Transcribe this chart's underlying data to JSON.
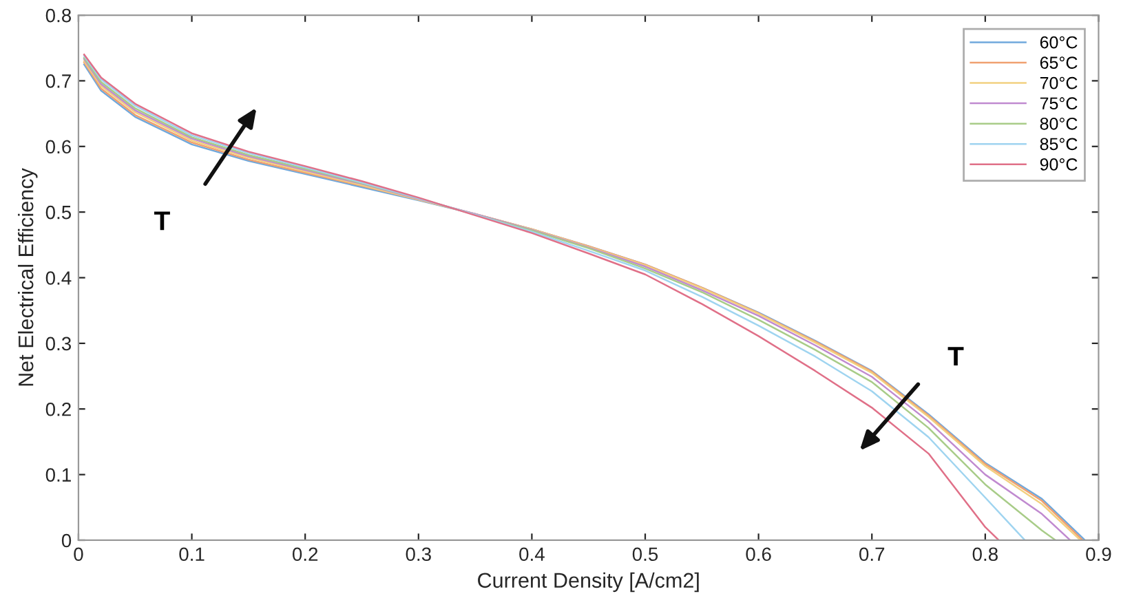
{
  "chart_data": {
    "type": "line",
    "xlabel": "Current Density [A/cm2]",
    "ylabel": "Net Electrical Efficiency",
    "xlim": [
      0,
      0.9
    ],
    "xticks": [
      0,
      0.1,
      0.2,
      0.3,
      0.4,
      0.5,
      0.6,
      0.7,
      0.8,
      0.9
    ],
    "ylim": [
      0,
      0.8
    ],
    "yticks": [
      0,
      0.1,
      0.2,
      0.3,
      0.4,
      0.5,
      0.6,
      0.7,
      0.8
    ],
    "grid": false,
    "legend": "top right",
    "annotations": [
      "T",
      "T"
    ],
    "series": [
      {
        "name": "60°C",
        "color": "#6fa8dc",
        "x": [
          0.005,
          0.02,
          0.05,
          0.1,
          0.15,
          0.2,
          0.25,
          0.3,
          0.35,
          0.4,
          0.45,
          0.5,
          0.55,
          0.6,
          0.65,
          0.7,
          0.75,
          0.8,
          0.85,
          0.888
        ],
        "values": [
          0.725,
          0.685,
          0.645,
          0.603,
          0.578,
          0.558,
          0.538,
          0.518,
          0.497,
          0.474,
          0.448,
          0.42,
          0.385,
          0.347,
          0.304,
          0.258,
          0.192,
          0.118,
          0.063,
          0
        ]
      },
      {
        "name": "65°C",
        "color": "#f0a070",
        "x": [
          0.005,
          0.02,
          0.05,
          0.1,
          0.15,
          0.2,
          0.25,
          0.3,
          0.35,
          0.4,
          0.45,
          0.5,
          0.55,
          0.6,
          0.65,
          0.7,
          0.75,
          0.8,
          0.85,
          0.886
        ],
        "values": [
          0.728,
          0.688,
          0.648,
          0.606,
          0.58,
          0.56,
          0.54,
          0.519,
          0.497,
          0.474,
          0.448,
          0.42,
          0.385,
          0.346,
          0.303,
          0.257,
          0.19,
          0.116,
          0.06,
          0
        ]
      },
      {
        "name": "70°C",
        "color": "#f2d080",
        "x": [
          0.005,
          0.02,
          0.05,
          0.1,
          0.15,
          0.2,
          0.25,
          0.3,
          0.35,
          0.4,
          0.45,
          0.5,
          0.55,
          0.6,
          0.65,
          0.7,
          0.75,
          0.8,
          0.85,
          0.884
        ],
        "values": [
          0.73,
          0.692,
          0.652,
          0.609,
          0.583,
          0.562,
          0.541,
          0.519,
          0.497,
          0.474,
          0.447,
          0.419,
          0.384,
          0.345,
          0.301,
          0.255,
          0.188,
          0.113,
          0.055,
          0
        ]
      },
      {
        "name": "75°C",
        "color": "#c08ad0",
        "x": [
          0.005,
          0.02,
          0.05,
          0.1,
          0.15,
          0.2,
          0.25,
          0.3,
          0.35,
          0.4,
          0.45,
          0.5,
          0.55,
          0.6,
          0.65,
          0.7,
          0.75,
          0.8,
          0.85,
          0.875
        ],
        "values": [
          0.733,
          0.695,
          0.655,
          0.612,
          0.585,
          0.564,
          0.543,
          0.52,
          0.497,
          0.473,
          0.446,
          0.417,
          0.381,
          0.342,
          0.297,
          0.249,
          0.181,
          0.1,
          0.04,
          0
        ]
      },
      {
        "name": "80°C",
        "color": "#a8cc88",
        "x": [
          0.005,
          0.02,
          0.05,
          0.1,
          0.15,
          0.2,
          0.25,
          0.3,
          0.35,
          0.4,
          0.45,
          0.5,
          0.55,
          0.6,
          0.65,
          0.7,
          0.75,
          0.8,
          0.85,
          0.862
        ],
        "values": [
          0.735,
          0.698,
          0.658,
          0.614,
          0.587,
          0.566,
          0.544,
          0.521,
          0.496,
          0.472,
          0.445,
          0.414,
          0.378,
          0.336,
          0.29,
          0.241,
          0.171,
          0.085,
          0.015,
          0
        ]
      },
      {
        "name": "85°C",
        "color": "#9fd4f0",
        "x": [
          0.005,
          0.02,
          0.05,
          0.1,
          0.15,
          0.2,
          0.25,
          0.3,
          0.35,
          0.4,
          0.45,
          0.5,
          0.55,
          0.6,
          0.65,
          0.7,
          0.75,
          0.8,
          0.835
        ],
        "values": [
          0.738,
          0.702,
          0.662,
          0.617,
          0.59,
          0.568,
          0.545,
          0.521,
          0.496,
          0.47,
          0.441,
          0.411,
          0.371,
          0.327,
          0.28,
          0.227,
          0.157,
          0.065,
          0
        ]
      },
      {
        "name": "90°C",
        "color": "#e07088",
        "x": [
          0.005,
          0.02,
          0.05,
          0.1,
          0.15,
          0.2,
          0.25,
          0.3,
          0.35,
          0.4,
          0.45,
          0.5,
          0.55,
          0.6,
          0.65,
          0.7,
          0.75,
          0.8,
          0.812
        ],
        "values": [
          0.74,
          0.705,
          0.665,
          0.62,
          0.592,
          0.57,
          0.547,
          0.522,
          0.495,
          0.468,
          0.437,
          0.405,
          0.36,
          0.311,
          0.258,
          0.202,
          0.132,
          0.02,
          0
        ]
      }
    ]
  }
}
